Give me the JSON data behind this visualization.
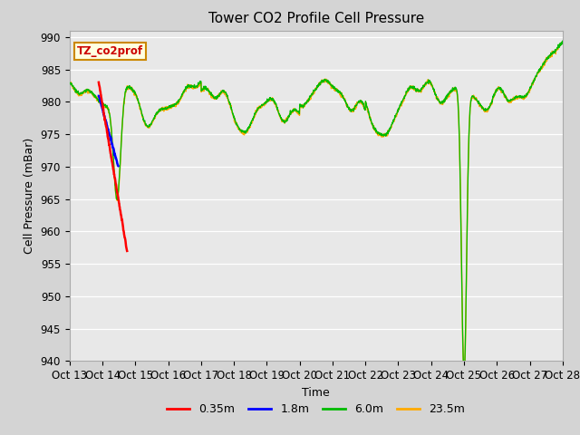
{
  "title": "Tower CO2 Profile Cell Pressure",
  "xlabel": "Time",
  "ylabel": "Cell Pressure (mBar)",
  "ylim": [
    940,
    991
  ],
  "yticks": [
    940,
    945,
    950,
    955,
    960,
    965,
    970,
    975,
    980,
    985,
    990
  ],
  "plot_bg_color": "#e8e8e8",
  "fig_bg_color": "#d4d4d4",
  "legend_label": "TZ_co2prof",
  "series_labels": [
    "0.35m",
    "1.8m",
    "6.0m",
    "23.5m"
  ],
  "series_colors": [
    "#ff0000",
    "#0000ff",
    "#00bb00",
    "#ffaa00"
  ],
  "xtick_labels": [
    "Oct 13",
    "Oct 14",
    "Oct 15",
    "Oct 16",
    "Oct 17",
    "Oct 18",
    "Oct 19",
    "Oct 20",
    "Oct 21",
    "Oct 22",
    "Oct 23",
    "Oct 24",
    "Oct 25",
    "Oct 26",
    "Oct 27",
    "Oct 28"
  ],
  "title_fontsize": 11,
  "axis_fontsize": 9,
  "tick_fontsize": 8.5
}
